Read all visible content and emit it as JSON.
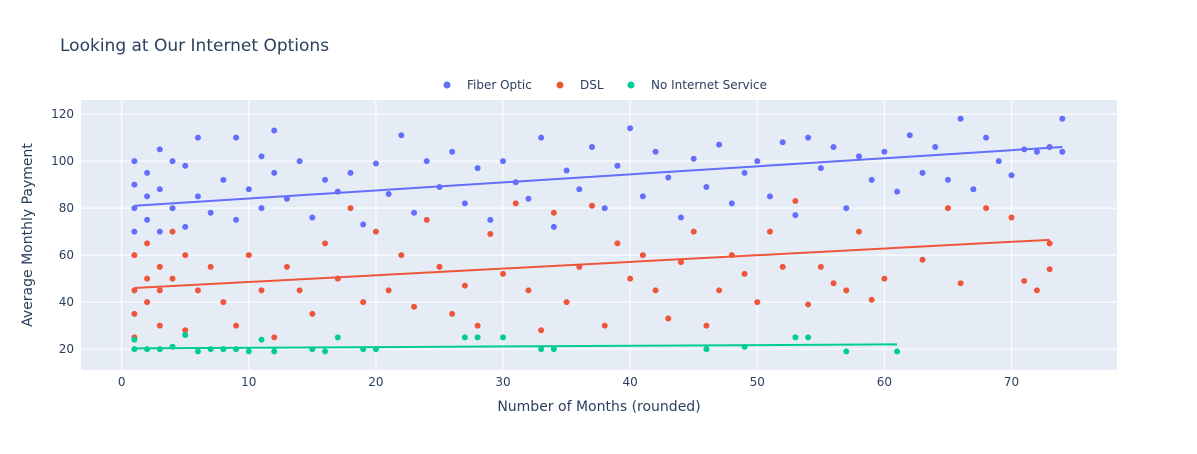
{
  "chart_data": {
    "type": "scatter",
    "title": "Looking at Our Internet Options",
    "x_label": "Number of Months (rounded)",
    "y_label": "Average Monthly Payment",
    "xlim": [
      -3.2,
      78.3
    ],
    "ylim": [
      11.1,
      126
    ],
    "xticks": [
      0,
      10,
      20,
      30,
      40,
      50,
      60,
      70
    ],
    "yticks": [
      20,
      40,
      60,
      80,
      100,
      120
    ],
    "grid": true,
    "legend": "top",
    "series": [
      {
        "name": "Fiber Optic",
        "color": "#636efa",
        "x": [
          1,
          1,
          1,
          1,
          2,
          2,
          2,
          3,
          3,
          3,
          4,
          4,
          5,
          5,
          6,
          6,
          7,
          8,
          9,
          9,
          10,
          11,
          11,
          12,
          12,
          13,
          14,
          15,
          16,
          17,
          18,
          19,
          20,
          21,
          22,
          23,
          24,
          25,
          26,
          27,
          28,
          29,
          30,
          31,
          32,
          33,
          34,
          35,
          36,
          37,
          38,
          39,
          40,
          41,
          42,
          43,
          44,
          45,
          46,
          47,
          48,
          49,
          50,
          51,
          52,
          53,
          54,
          55,
          56,
          57,
          58,
          59,
          60,
          61,
          62,
          63,
          64,
          65,
          66,
          67,
          68,
          69,
          70,
          71,
          72,
          73,
          74,
          74
        ],
        "y": [
          70,
          80,
          90,
          100,
          75,
          95,
          85,
          70,
          105,
          88,
          80,
          100,
          72,
          98,
          110,
          85,
          78,
          92,
          75,
          110,
          88,
          102,
          80,
          113,
          95,
          84,
          100,
          76,
          92,
          87,
          95,
          73,
          99,
          86,
          111,
          78,
          100,
          89,
          104,
          82,
          97,
          75,
          100,
          91,
          84,
          110,
          72,
          96,
          88,
          106,
          80,
          98,
          114,
          85,
          104,
          93,
          76,
          101,
          89,
          107,
          82,
          95,
          100,
          85,
          108,
          77,
          110,
          97,
          106,
          80,
          102,
          92,
          104,
          87,
          111,
          95,
          106,
          92,
          118,
          88,
          110,
          100,
          94,
          105,
          104,
          106,
          118,
          104
        ],
        "trendline": {
          "x": [
            1,
            74
          ],
          "y": [
            81,
            106
          ]
        }
      },
      {
        "name": "DSL",
        "color": "#EF553B",
        "x": [
          1,
          1,
          1,
          1,
          2,
          2,
          2,
          3,
          3,
          3,
          4,
          4,
          5,
          5,
          6,
          7,
          8,
          9,
          10,
          11,
          12,
          13,
          14,
          15,
          16,
          17,
          18,
          19,
          20,
          21,
          22,
          23,
          24,
          25,
          26,
          27,
          28,
          29,
          30,
          31,
          32,
          33,
          34,
          35,
          36,
          37,
          38,
          39,
          40,
          41,
          42,
          43,
          44,
          45,
          46,
          47,
          48,
          49,
          50,
          51,
          52,
          53,
          54,
          55,
          56,
          57,
          58,
          59,
          60,
          63,
          65,
          66,
          68,
          70,
          71,
          72,
          73,
          73
        ],
        "y": [
          25,
          45,
          60,
          35,
          50,
          40,
          65,
          30,
          55,
          45,
          50,
          70,
          28,
          60,
          45,
          55,
          40,
          30,
          60,
          45,
          25,
          55,
          45,
          35,
          65,
          50,
          80,
          40,
          70,
          45,
          60,
          38,
          75,
          55,
          35,
          47,
          30,
          69,
          52,
          82,
          45,
          28,
          78,
          40,
          55,
          81,
          30,
          65,
          50,
          60,
          45,
          33,
          57,
          70,
          30,
          45,
          60,
          52,
          40,
          70,
          55,
          83,
          39,
          55,
          48,
          45,
          70,
          41,
          50,
          58,
          80,
          48,
          80,
          76,
          49,
          45,
          54,
          65
        ],
        "trendline": {
          "x": [
            1,
            73
          ],
          "y": [
            46,
            66.5
          ]
        }
      },
      {
        "name": "No Internet Service",
        "color": "#00cc96",
        "x": [
          1,
          1,
          2,
          3,
          4,
          5,
          6,
          7,
          8,
          9,
          10,
          11,
          12,
          15,
          16,
          17,
          19,
          20,
          27,
          28,
          30,
          33,
          34,
          46,
          49,
          53,
          54,
          57,
          61
        ],
        "y": [
          20,
          24,
          20,
          20,
          21,
          26,
          19,
          20,
          20,
          20,
          19,
          24,
          19,
          20,
          19,
          25,
          20,
          20,
          25,
          25,
          25,
          20,
          20,
          20,
          21,
          25,
          25,
          19,
          19
        ],
        "trendline": {
          "x": [
            1,
            61
          ],
          "y": [
            20.3,
            22
          ]
        }
      }
    ]
  }
}
